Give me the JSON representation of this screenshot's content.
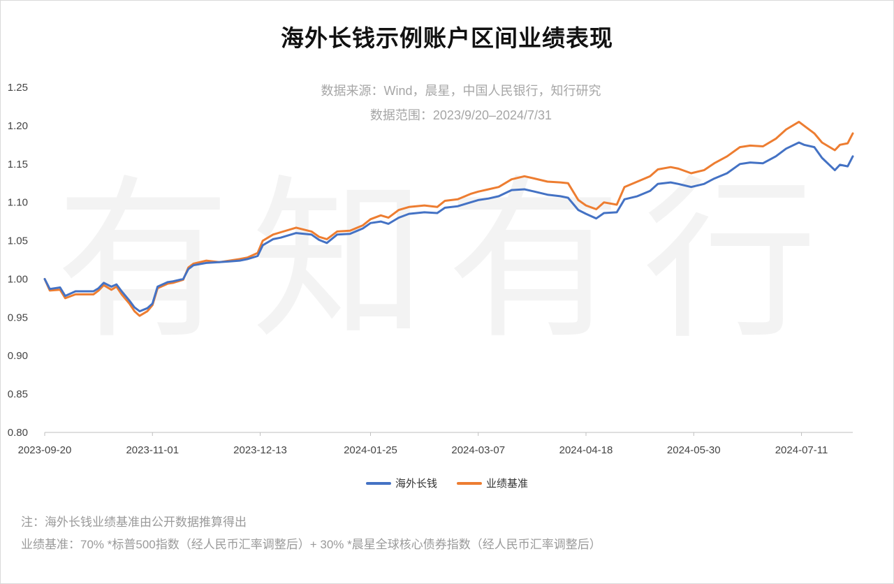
{
  "title": "海外长钱示例账户区间业绩表现",
  "subtitle_source": "数据来源：Wind，晨星，中国人民银行，知行研究",
  "subtitle_range": "数据范围：2023/9/20–2024/7/31",
  "watermark": "有知有行",
  "note1": "注：海外长钱业绩基准由公开数据推算得出",
  "note2": "业绩基准：70% *标普500指数（经人民币汇率调整后）+ 30% *晨星全球核心债券指数（经人民币汇率调整后）",
  "colors": {
    "series1": "#4472c4",
    "series2": "#ed7d31",
    "axis": "#bfbfbf"
  },
  "chart_data": {
    "type": "line",
    "xlim": [
      "2023-09-20",
      "2024-07-31"
    ],
    "ylim": [
      0.8,
      1.25
    ],
    "yticks": [
      "0.80",
      "0.85",
      "0.90",
      "0.95",
      "1.00",
      "1.05",
      "1.10",
      "1.15",
      "1.20",
      "1.25"
    ],
    "xticks": [
      "2023-09-20",
      "2023-11-01",
      "2023-12-13",
      "2024-01-25",
      "2024-03-07",
      "2024-04-18",
      "2024-05-30",
      "2024-07-11"
    ],
    "grid": false,
    "legend_position": "bottom",
    "series": [
      {
        "name": "海外长钱",
        "color": "#4472c4",
        "points": [
          [
            "2023-09-20",
            1.0
          ],
          [
            "2023-09-22",
            0.987
          ],
          [
            "2023-09-26",
            0.989
          ],
          [
            "2023-09-28",
            0.978
          ],
          [
            "2023-10-02",
            0.984
          ],
          [
            "2023-10-09",
            0.984
          ],
          [
            "2023-10-11",
            0.988
          ],
          [
            "2023-10-13",
            0.995
          ],
          [
            "2023-10-16",
            0.99
          ],
          [
            "2023-10-18",
            0.993
          ],
          [
            "2023-10-20",
            0.984
          ],
          [
            "2023-10-23",
            0.972
          ],
          [
            "2023-10-25",
            0.963
          ],
          [
            "2023-10-27",
            0.958
          ],
          [
            "2023-10-30",
            0.962
          ],
          [
            "2023-11-01",
            0.968
          ],
          [
            "2023-11-03",
            0.99
          ],
          [
            "2023-11-07",
            0.996
          ],
          [
            "2023-11-09",
            0.997
          ],
          [
            "2023-11-13",
            1.0
          ],
          [
            "2023-11-15",
            1.013
          ],
          [
            "2023-11-17",
            1.018
          ],
          [
            "2023-11-22",
            1.021
          ],
          [
            "2023-11-27",
            1.022
          ],
          [
            "2023-12-01",
            1.023
          ],
          [
            "2023-12-05",
            1.024
          ],
          [
            "2023-12-08",
            1.026
          ],
          [
            "2023-12-12",
            1.03
          ],
          [
            "2023-12-14",
            1.044
          ],
          [
            "2023-12-18",
            1.052
          ],
          [
            "2023-12-21",
            1.054
          ],
          [
            "2023-12-27",
            1.06
          ],
          [
            "2024-01-02",
            1.058
          ],
          [
            "2024-01-05",
            1.051
          ],
          [
            "2024-01-08",
            1.047
          ],
          [
            "2024-01-12",
            1.058
          ],
          [
            "2024-01-17",
            1.059
          ],
          [
            "2024-01-22",
            1.066
          ],
          [
            "2024-01-25",
            1.073
          ],
          [
            "2024-01-29",
            1.075
          ],
          [
            "2024-02-01",
            1.072
          ],
          [
            "2024-02-05",
            1.08
          ],
          [
            "2024-02-09",
            1.085
          ],
          [
            "2024-02-15",
            1.087
          ],
          [
            "2024-02-20",
            1.086
          ],
          [
            "2024-02-23",
            1.093
          ],
          [
            "2024-02-28",
            1.095
          ],
          [
            "2024-03-04",
            1.1
          ],
          [
            "2024-03-07",
            1.103
          ],
          [
            "2024-03-11",
            1.105
          ],
          [
            "2024-03-15",
            1.108
          ],
          [
            "2024-03-20",
            1.116
          ],
          [
            "2024-03-25",
            1.117
          ],
          [
            "2024-03-29",
            1.114
          ],
          [
            "2024-04-03",
            1.11
          ],
          [
            "2024-04-08",
            1.108
          ],
          [
            "2024-04-11",
            1.106
          ],
          [
            "2024-04-15",
            1.09
          ],
          [
            "2024-04-18",
            1.085
          ],
          [
            "2024-04-22",
            1.079
          ],
          [
            "2024-04-25",
            1.086
          ],
          [
            "2024-04-30",
            1.087
          ],
          [
            "2024-05-03",
            1.104
          ],
          [
            "2024-05-08",
            1.108
          ],
          [
            "2024-05-13",
            1.115
          ],
          [
            "2024-05-16",
            1.124
          ],
          [
            "2024-05-21",
            1.126
          ],
          [
            "2024-05-24",
            1.124
          ],
          [
            "2024-05-29",
            1.12
          ],
          [
            "2024-06-03",
            1.124
          ],
          [
            "2024-06-07",
            1.131
          ],
          [
            "2024-06-12",
            1.138
          ],
          [
            "2024-06-17",
            1.15
          ],
          [
            "2024-06-21",
            1.152
          ],
          [
            "2024-06-26",
            1.151
          ],
          [
            "2024-07-01",
            1.16
          ],
          [
            "2024-07-05",
            1.17
          ],
          [
            "2024-07-10",
            1.178
          ],
          [
            "2024-07-12",
            1.175
          ],
          [
            "2024-07-16",
            1.172
          ],
          [
            "2024-07-19",
            1.158
          ],
          [
            "2024-07-24",
            1.142
          ],
          [
            "2024-07-26",
            1.149
          ],
          [
            "2024-07-29",
            1.147
          ],
          [
            "2024-07-31",
            1.16
          ]
        ]
      },
      {
        "name": "业绩基准",
        "color": "#ed7d31",
        "points": [
          [
            "2023-09-20",
            1.0
          ],
          [
            "2023-09-22",
            0.985
          ],
          [
            "2023-09-26",
            0.986
          ],
          [
            "2023-09-28",
            0.975
          ],
          [
            "2023-10-02",
            0.98
          ],
          [
            "2023-10-09",
            0.98
          ],
          [
            "2023-10-11",
            0.985
          ],
          [
            "2023-10-13",
            0.992
          ],
          [
            "2023-10-16",
            0.986
          ],
          [
            "2023-10-18",
            0.99
          ],
          [
            "2023-10-20",
            0.98
          ],
          [
            "2023-10-23",
            0.968
          ],
          [
            "2023-10-25",
            0.958
          ],
          [
            "2023-10-27",
            0.952
          ],
          [
            "2023-10-30",
            0.958
          ],
          [
            "2023-11-01",
            0.966
          ],
          [
            "2023-11-03",
            0.988
          ],
          [
            "2023-11-07",
            0.994
          ],
          [
            "2023-11-09",
            0.995
          ],
          [
            "2023-11-13",
            0.999
          ],
          [
            "2023-11-15",
            1.015
          ],
          [
            "2023-11-17",
            1.02
          ],
          [
            "2023-11-22",
            1.024
          ],
          [
            "2023-11-27",
            1.022
          ],
          [
            "2023-12-01",
            1.024
          ],
          [
            "2023-12-05",
            1.026
          ],
          [
            "2023-12-08",
            1.028
          ],
          [
            "2023-12-12",
            1.034
          ],
          [
            "2023-12-14",
            1.05
          ],
          [
            "2023-12-18",
            1.058
          ],
          [
            "2023-12-21",
            1.061
          ],
          [
            "2023-12-27",
            1.067
          ],
          [
            "2024-01-02",
            1.062
          ],
          [
            "2024-01-05",
            1.055
          ],
          [
            "2024-01-08",
            1.052
          ],
          [
            "2024-01-12",
            1.062
          ],
          [
            "2024-01-17",
            1.063
          ],
          [
            "2024-01-22",
            1.07
          ],
          [
            "2024-01-25",
            1.078
          ],
          [
            "2024-01-29",
            1.083
          ],
          [
            "2024-02-01",
            1.08
          ],
          [
            "2024-02-05",
            1.09
          ],
          [
            "2024-02-09",
            1.094
          ],
          [
            "2024-02-15",
            1.096
          ],
          [
            "2024-02-20",
            1.094
          ],
          [
            "2024-02-23",
            1.102
          ],
          [
            "2024-02-28",
            1.104
          ],
          [
            "2024-03-04",
            1.111
          ],
          [
            "2024-03-07",
            1.114
          ],
          [
            "2024-03-11",
            1.117
          ],
          [
            "2024-03-15",
            1.12
          ],
          [
            "2024-03-20",
            1.13
          ],
          [
            "2024-03-25",
            1.134
          ],
          [
            "2024-03-29",
            1.131
          ],
          [
            "2024-04-03",
            1.127
          ],
          [
            "2024-04-08",
            1.126
          ],
          [
            "2024-04-11",
            1.125
          ],
          [
            "2024-04-15",
            1.103
          ],
          [
            "2024-04-18",
            1.096
          ],
          [
            "2024-04-22",
            1.091
          ],
          [
            "2024-04-25",
            1.1
          ],
          [
            "2024-04-30",
            1.097
          ],
          [
            "2024-05-03",
            1.12
          ],
          [
            "2024-05-08",
            1.127
          ],
          [
            "2024-05-13",
            1.134
          ],
          [
            "2024-05-16",
            1.143
          ],
          [
            "2024-05-21",
            1.146
          ],
          [
            "2024-05-24",
            1.144
          ],
          [
            "2024-05-29",
            1.138
          ],
          [
            "2024-06-03",
            1.142
          ],
          [
            "2024-06-07",
            1.151
          ],
          [
            "2024-06-12",
            1.16
          ],
          [
            "2024-06-17",
            1.172
          ],
          [
            "2024-06-21",
            1.174
          ],
          [
            "2024-06-26",
            1.173
          ],
          [
            "2024-07-01",
            1.183
          ],
          [
            "2024-07-05",
            1.195
          ],
          [
            "2024-07-10",
            1.205
          ],
          [
            "2024-07-12",
            1.2
          ],
          [
            "2024-07-16",
            1.19
          ],
          [
            "2024-07-19",
            1.178
          ],
          [
            "2024-07-24",
            1.168
          ],
          [
            "2024-07-26",
            1.175
          ],
          [
            "2024-07-29",
            1.177
          ],
          [
            "2024-07-31",
            1.19
          ]
        ]
      }
    ]
  }
}
